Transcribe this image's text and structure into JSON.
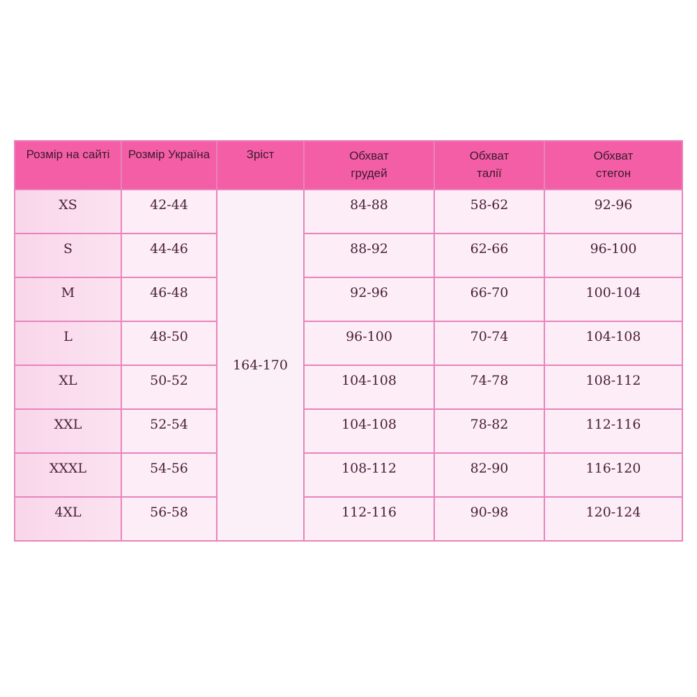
{
  "headers": [
    "Розмір на сайті",
    "Розмір Україна",
    "Зріст",
    "Обхват грудей",
    "Обхват талії",
    "Обхват стегон"
  ],
  "height_value": "164-170",
  "rows": [
    {
      "size": "XS",
      "ua": "42-44",
      "chest": "84-88",
      "waist": "58-62",
      "hips": "92-96"
    },
    {
      "size": "S",
      "ua": "44-46",
      "chest": "88-92",
      "waist": "62-66",
      "hips": "96-100"
    },
    {
      "size": "M",
      "ua": "46-48",
      "chest": "92-96",
      "waist": "66-70",
      "hips": "100-104"
    },
    {
      "size": "L",
      "ua": "48-50",
      "chest": "96-100",
      "waist": "70-74",
      "hips": "104-108"
    },
    {
      "size": "XL",
      "ua": "50-52",
      "chest": "104-108",
      "waist": "74-78",
      "hips": "108-112"
    },
    {
      "size": "XXL",
      "ua": "52-54",
      "chest": "104-108",
      "waist": "78-82",
      "hips": "112-116"
    },
    {
      "size": "XXXL",
      "ua": "54-56",
      "chest": "108-112",
      "waist": "82-90",
      "hips": "116-120"
    },
    {
      "size": "4XL",
      "ua": "56-58",
      "chest": "112-116",
      "waist": "90-98",
      "hips": "120-124"
    }
  ],
  "colors": {
    "header_bg": "#f45ea6",
    "border": "#e784bb",
    "cell_bg": "#fcedf7",
    "text": "#4a2038"
  }
}
